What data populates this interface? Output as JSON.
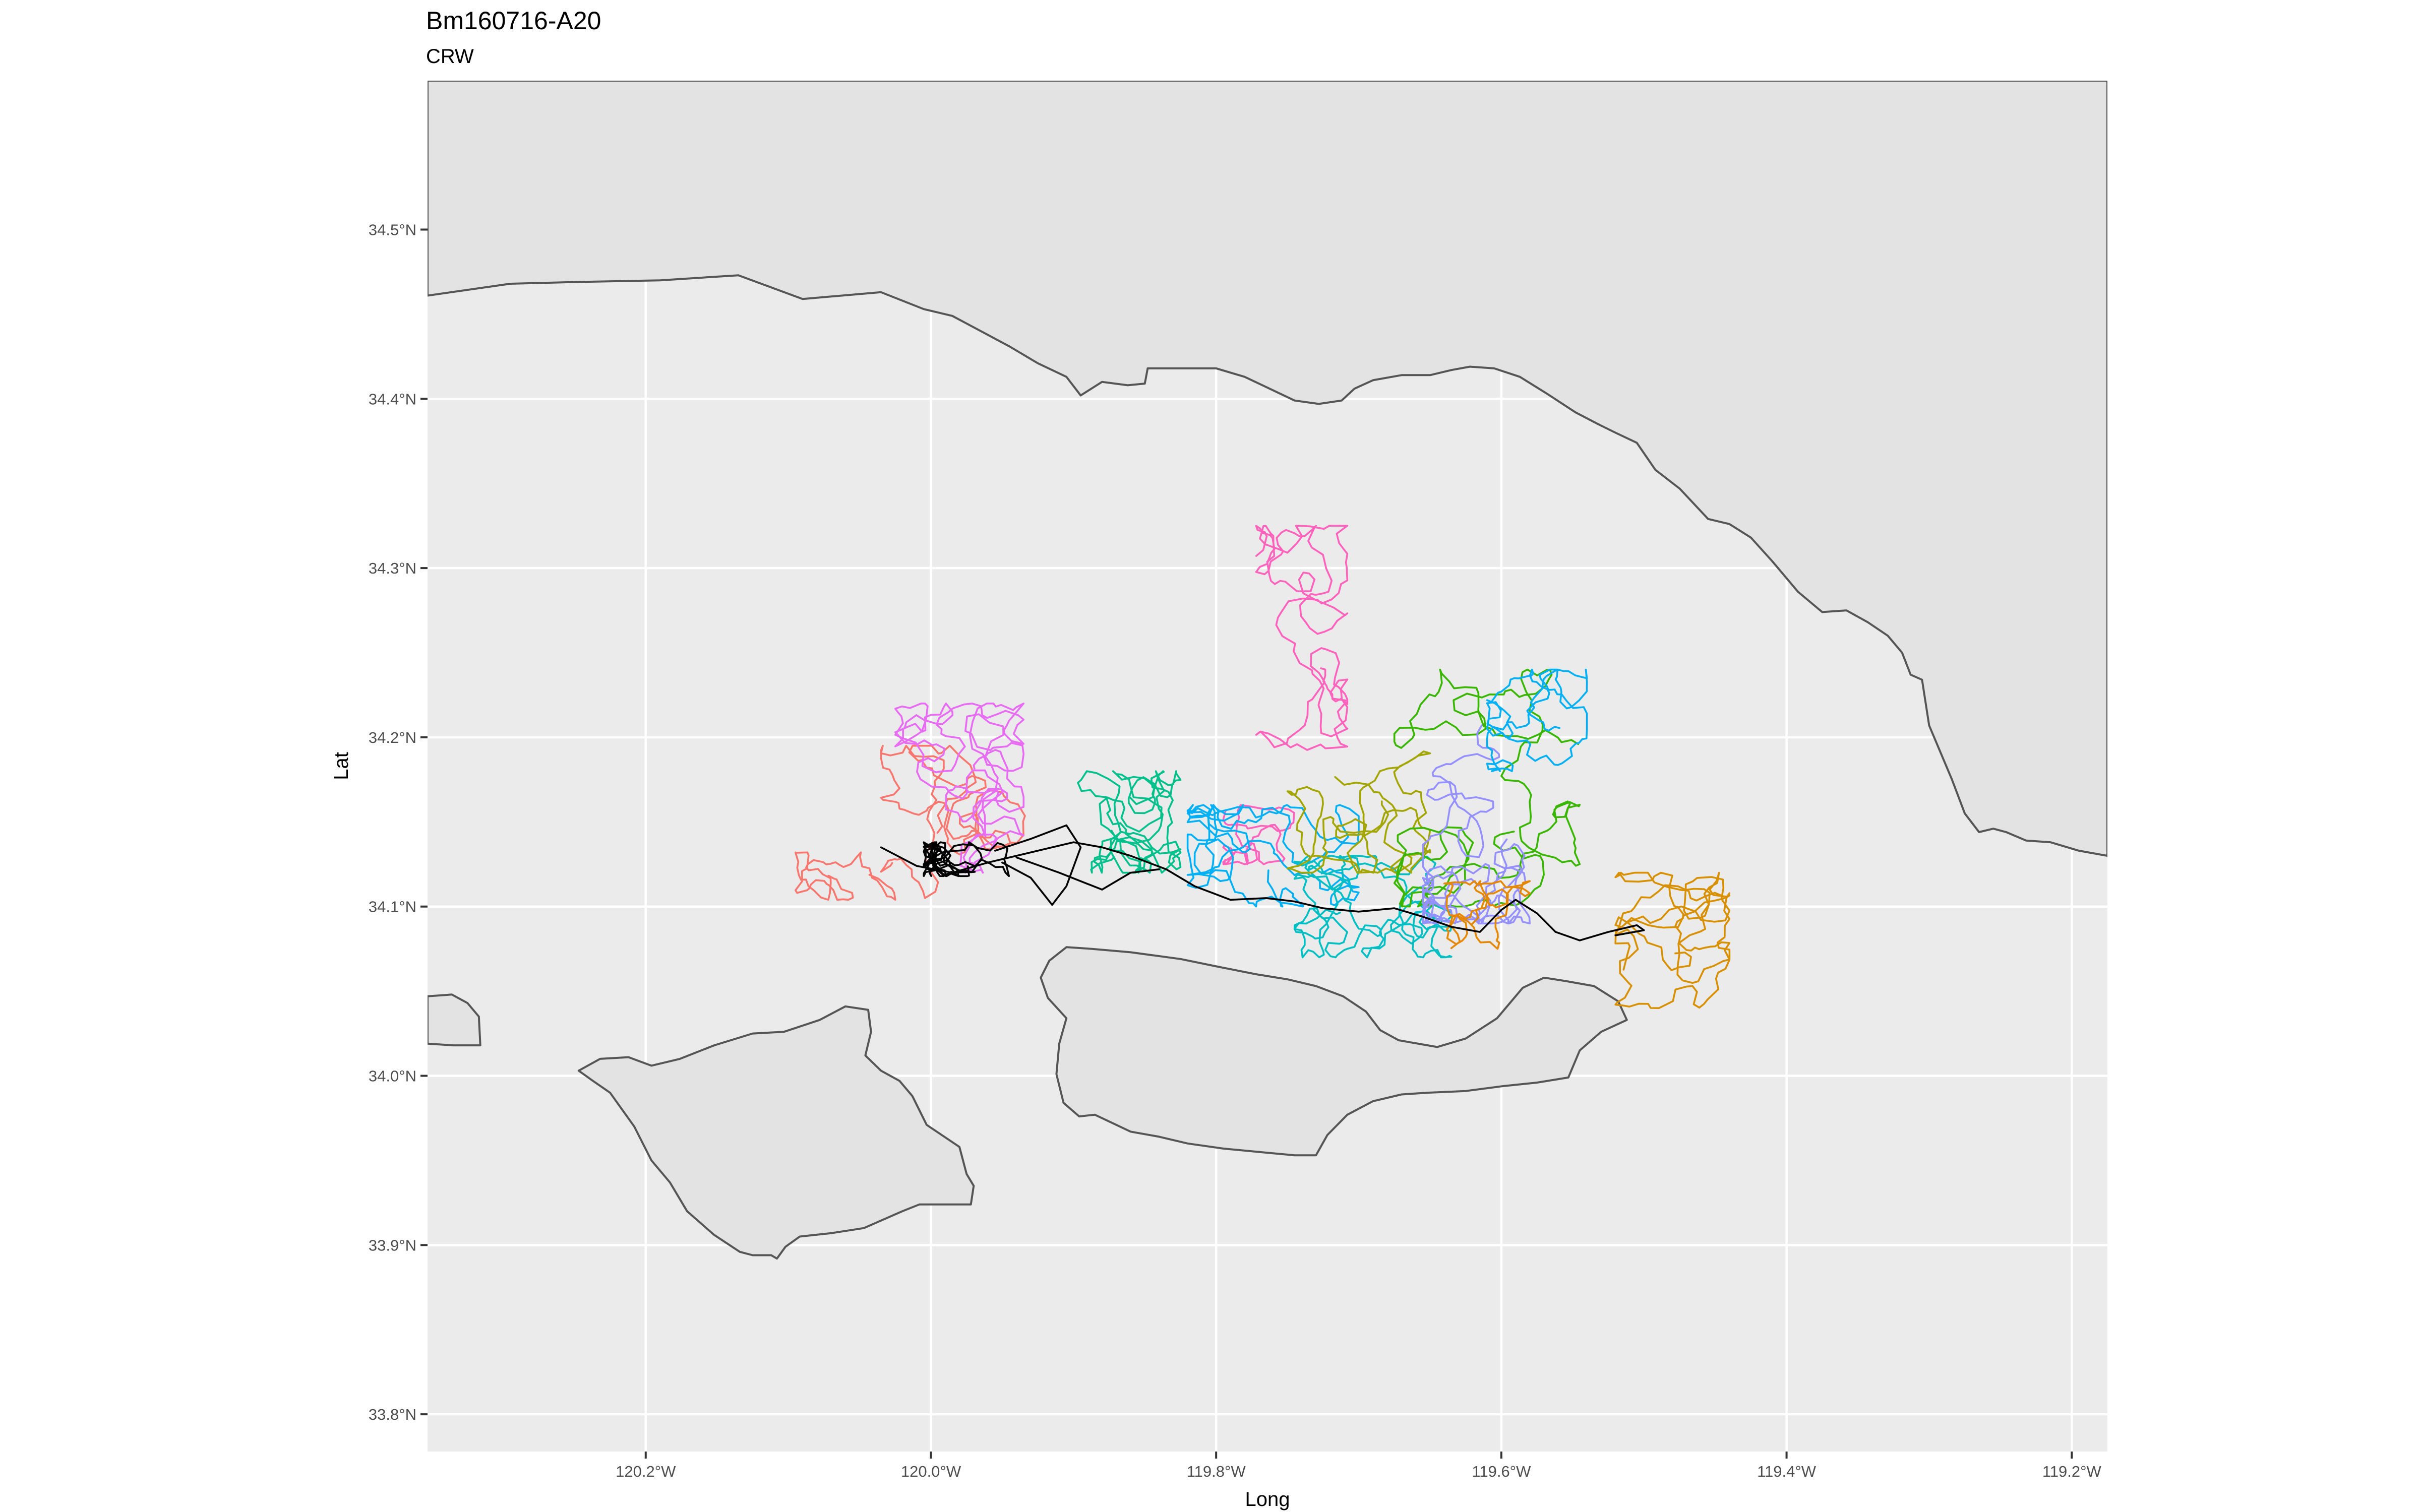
{
  "title": "Bm160716-A20",
  "subtitle": "CRW",
  "chart_data": {
    "type": "map",
    "title": "Bm160716-A20",
    "subtitle": "CRW",
    "xlabel": "Long",
    "ylabel": "Lat",
    "xlim": [
      -120.353,
      -119.175
    ],
    "ylim": [
      33.778,
      34.588
    ],
    "x_ticks": [
      {
        "value": -120.2,
        "label": "120.2°W"
      },
      {
        "value": -120.0,
        "label": "120.0°W"
      },
      {
        "value": -119.8,
        "label": "119.8°W"
      },
      {
        "value": -119.6,
        "label": "119.6°W"
      },
      {
        "value": -119.4,
        "label": "119.4°W"
      },
      {
        "value": -119.2,
        "label": "119.2°W"
      }
    ],
    "y_ticks": [
      {
        "value": 33.8,
        "label": "33.8°N"
      },
      {
        "value": 33.9,
        "label": "33.9°N"
      },
      {
        "value": 34.0,
        "label": "34.0°N"
      },
      {
        "value": 34.1,
        "label": "34.1°N"
      },
      {
        "value": 34.2,
        "label": "34.2°N"
      },
      {
        "value": 34.3,
        "label": "34.3°N"
      },
      {
        "value": 34.4,
        "label": "34.4°N"
      },
      {
        "value": 34.5,
        "label": "34.5°N"
      }
    ],
    "panel_background": "#ebebeb",
    "land_fill": "#e3e3e3",
    "land_stroke": "#555555",
    "grid": true,
    "legend": "none",
    "land": [
      {
        "name": "mainland-coast",
        "points": [
          [
            -120.353,
            34.461
          ],
          [
            -120.295,
            34.468
          ],
          [
            -120.25,
            34.469
          ],
          [
            -120.19,
            34.47
          ],
          [
            -120.135,
            34.473
          ],
          [
            -120.09,
            34.459
          ],
          [
            -120.035,
            34.463
          ],
          [
            -120.005,
            34.453
          ],
          [
            -119.985,
            34.449
          ],
          [
            -119.965,
            34.44
          ],
          [
            -119.945,
            34.431
          ],
          [
            -119.925,
            34.421
          ],
          [
            -119.905,
            34.413
          ],
          [
            -119.895,
            34.402
          ],
          [
            -119.88,
            34.41
          ],
          [
            -119.862,
            34.408
          ],
          [
            -119.85,
            34.409
          ],
          [
            -119.848,
            34.418
          ],
          [
            -119.825,
            34.418
          ],
          [
            -119.8,
            34.418
          ],
          [
            -119.78,
            34.413
          ],
          [
            -119.765,
            34.407
          ],
          [
            -119.745,
            34.399
          ],
          [
            -119.728,
            34.397
          ],
          [
            -119.712,
            34.399
          ],
          [
            -119.703,
            34.406
          ],
          [
            -119.69,
            34.411
          ],
          [
            -119.67,
            34.414
          ],
          [
            -119.65,
            34.414
          ],
          [
            -119.635,
            34.417
          ],
          [
            -119.622,
            34.419
          ],
          [
            -119.605,
            34.418
          ],
          [
            -119.587,
            34.413
          ],
          [
            -119.568,
            34.403
          ],
          [
            -119.548,
            34.392
          ],
          [
            -119.532,
            34.385
          ],
          [
            -119.52,
            34.38
          ],
          [
            -119.505,
            34.374
          ],
          [
            -119.492,
            34.358
          ],
          [
            -119.475,
            34.347
          ],
          [
            -119.455,
            34.329
          ],
          [
            -119.44,
            34.326
          ],
          [
            -119.425,
            34.318
          ],
          [
            -119.41,
            34.304
          ],
          [
            -119.392,
            34.286
          ],
          [
            -119.375,
            34.274
          ],
          [
            -119.358,
            34.275
          ],
          [
            -119.343,
            34.268
          ],
          [
            -119.329,
            34.26
          ],
          [
            -119.319,
            34.25
          ],
          [
            -119.313,
            34.237
          ],
          [
            -119.305,
            34.234
          ],
          [
            -119.3,
            34.207
          ],
          [
            -119.284,
            34.175
          ],
          [
            -119.275,
            34.155
          ],
          [
            -119.265,
            34.144
          ],
          [
            -119.255,
            34.146
          ],
          [
            -119.246,
            34.144
          ],
          [
            -119.232,
            34.139
          ],
          [
            -119.215,
            34.138
          ],
          [
            -119.195,
            34.133
          ],
          [
            -119.175,
            34.13
          ],
          [
            -119.175,
            34.588
          ],
          [
            -120.353,
            34.588
          ]
        ]
      },
      {
        "name": "san-miguel-island",
        "points": [
          [
            -120.353,
            34.047
          ],
          [
            -120.336,
            34.048
          ],
          [
            -120.325,
            34.043
          ],
          [
            -120.317,
            34.035
          ],
          [
            -120.316,
            34.018
          ],
          [
            -120.335,
            34.018
          ],
          [
            -120.353,
            34.019
          ]
        ]
      },
      {
        "name": "santa-rosa-island",
        "points": [
          [
            -120.247,
            34.003
          ],
          [
            -120.232,
            34.01
          ],
          [
            -120.212,
            34.011
          ],
          [
            -120.196,
            34.006
          ],
          [
            -120.176,
            34.01
          ],
          [
            -120.152,
            34.018
          ],
          [
            -120.125,
            34.025
          ],
          [
            -120.103,
            34.026
          ],
          [
            -120.078,
            34.033
          ],
          [
            -120.06,
            34.041
          ],
          [
            -120.044,
            34.039
          ],
          [
            -120.042,
            34.026
          ],
          [
            -120.046,
            34.012
          ],
          [
            -120.035,
            34.003
          ],
          [
            -120.022,
            33.997
          ],
          [
            -120.013,
            33.988
          ],
          [
            -120.003,
            33.971
          ],
          [
            -119.98,
            33.958
          ],
          [
            -119.975,
            33.942
          ],
          [
            -119.97,
            33.935
          ],
          [
            -119.972,
            33.924
          ],
          [
            -120.008,
            33.924
          ],
          [
            -120.02,
            33.92
          ],
          [
            -120.047,
            33.91
          ],
          [
            -120.07,
            33.907
          ],
          [
            -120.092,
            33.905
          ],
          [
            -120.102,
            33.899
          ],
          [
            -120.108,
            33.892
          ],
          [
            -120.112,
            33.894
          ],
          [
            -120.125,
            33.894
          ],
          [
            -120.134,
            33.896
          ],
          [
            -120.152,
            33.906
          ],
          [
            -120.171,
            33.92
          ],
          [
            -120.183,
            33.937
          ],
          [
            -120.196,
            33.95
          ],
          [
            -120.208,
            33.97
          ],
          [
            -120.225,
            33.99
          ],
          [
            -120.237,
            33.997
          ]
        ]
      },
      {
        "name": "santa-cruz-island",
        "points": [
          [
            -119.917,
            34.068
          ],
          [
            -119.905,
            34.076
          ],
          [
            -119.887,
            34.075
          ],
          [
            -119.86,
            34.073
          ],
          [
            -119.825,
            34.069
          ],
          [
            -119.796,
            34.064
          ],
          [
            -119.772,
            34.06
          ],
          [
            -119.75,
            34.057
          ],
          [
            -119.73,
            34.053
          ],
          [
            -119.711,
            34.047
          ],
          [
            -119.695,
            34.038
          ],
          [
            -119.685,
            34.027
          ],
          [
            -119.672,
            34.021
          ],
          [
            -119.645,
            34.017
          ],
          [
            -119.625,
            34.022
          ],
          [
            -119.603,
            34.034
          ],
          [
            -119.585,
            34.052
          ],
          [
            -119.57,
            34.058
          ],
          [
            -119.555,
            34.056
          ],
          [
            -119.535,
            34.053
          ],
          [
            -119.518,
            34.044
          ],
          [
            -119.512,
            34.033
          ],
          [
            -119.53,
            34.026
          ],
          [
            -119.545,
            34.015
          ],
          [
            -119.553,
            33.999
          ],
          [
            -119.575,
            33.996
          ],
          [
            -119.598,
            33.994
          ],
          [
            -119.625,
            33.991
          ],
          [
            -119.652,
            33.99
          ],
          [
            -119.67,
            33.989
          ],
          [
            -119.69,
            33.985
          ],
          [
            -119.708,
            33.977
          ],
          [
            -119.722,
            33.965
          ],
          [
            -119.73,
            33.953
          ],
          [
            -119.745,
            33.953
          ],
          [
            -119.77,
            33.955
          ],
          [
            -119.795,
            33.957
          ],
          [
            -119.82,
            33.96
          ],
          [
            -119.84,
            33.964
          ],
          [
            -119.86,
            33.967
          ],
          [
            -119.875,
            33.973
          ],
          [
            -119.885,
            33.977
          ],
          [
            -119.896,
            33.976
          ],
          [
            -119.907,
            33.984
          ],
          [
            -119.912,
            34.001
          ],
          [
            -119.91,
            34.019
          ],
          [
            -119.905,
            34.034
          ],
          [
            -119.918,
            34.046
          ],
          [
            -119.923,
            34.058
          ]
        ]
      }
    ],
    "track_seed": 160716,
    "series": [
      {
        "color": "#f8766d",
        "n": 160,
        "center": [
          -119.98,
          34.15
        ],
        "spread": [
          0.055,
          0.045
        ],
        "step": 0.0055
      },
      {
        "color": "#f8766d",
        "n": 70,
        "center": [
          -120.06,
          34.118
        ],
        "spread": [
          0.035,
          0.014
        ],
        "step": 0.0045
      },
      {
        "color": "#e76bf3",
        "n": 230,
        "center": [
          -119.98,
          34.17
        ],
        "spread": [
          0.045,
          0.05
        ],
        "step": 0.006
      },
      {
        "color": "#ff62bc",
        "n": 180,
        "center": [
          -119.74,
          34.25
        ],
        "spread": [
          0.032,
          0.075
        ],
        "step": 0.006
      },
      {
        "color": "#ff62bc",
        "n": 80,
        "center": [
          -119.77,
          34.145
        ],
        "spread": [
          0.025,
          0.02
        ],
        "step": 0.0045
      },
      {
        "color": "#00c08b",
        "n": 190,
        "center": [
          -119.87,
          34.15
        ],
        "spread": [
          0.045,
          0.03
        ],
        "step": 0.0055
      },
      {
        "color": "#00b0f6",
        "n": 230,
        "center": [
          -119.76,
          34.13
        ],
        "spread": [
          0.06,
          0.03
        ],
        "step": 0.005
      },
      {
        "color": "#00bfc4",
        "n": 250,
        "center": [
          -119.69,
          34.1
        ],
        "spread": [
          0.055,
          0.03
        ],
        "step": 0.005
      },
      {
        "color": "#a3a500",
        "n": 170,
        "center": [
          -119.7,
          34.16
        ],
        "spread": [
          0.05,
          0.04
        ],
        "step": 0.0055
      },
      {
        "color": "#39b600",
        "n": 230,
        "center": [
          -119.61,
          34.17
        ],
        "spread": [
          0.065,
          0.07
        ],
        "step": 0.006
      },
      {
        "color": "#9590ff",
        "n": 250,
        "center": [
          -119.6,
          34.15
        ],
        "spread": [
          0.055,
          0.06
        ],
        "step": 0.0055
      },
      {
        "color": "#00b0f6",
        "n": 130,
        "center": [
          -119.575,
          34.21
        ],
        "spread": [
          0.035,
          0.03
        ],
        "step": 0.005
      },
      {
        "color": "#d89000",
        "n": 180,
        "center": [
          -119.48,
          34.08
        ],
        "spread": [
          0.04,
          0.04
        ],
        "step": 0.006
      },
      {
        "color": "#e58700",
        "n": 90,
        "center": [
          -119.61,
          34.095
        ],
        "spread": [
          0.03,
          0.02
        ],
        "step": 0.0045
      }
    ],
    "black_track": {
      "color": "#000000",
      "loops_center": [
        -119.975,
        34.128
      ],
      "loops_spread": [
        0.03,
        0.01
      ],
      "loops_n": 150,
      "path": [
        [
          -120.035,
          34.135
        ],
        [
          -120.01,
          34.124
        ],
        [
          -119.985,
          34.12
        ],
        [
          -119.96,
          34.126
        ],
        [
          -119.94,
          34.13
        ],
        [
          -119.92,
          34.134
        ],
        [
          -119.9,
          34.138
        ],
        [
          -119.88,
          34.135
        ],
        [
          -119.86,
          34.13
        ],
        [
          -119.835,
          34.122
        ],
        [
          -119.815,
          34.112
        ],
        [
          -119.79,
          34.104
        ],
        [
          -119.765,
          34.105
        ],
        [
          -119.745,
          34.103
        ],
        [
          -119.725,
          34.099
        ],
        [
          -119.7,
          34.097
        ],
        [
          -119.675,
          34.099
        ],
        [
          -119.655,
          34.094
        ],
        [
          -119.635,
          34.088
        ],
        [
          -119.615,
          34.085
        ],
        [
          -119.6,
          34.098
        ],
        [
          -119.59,
          34.104
        ],
        [
          -119.575,
          34.096
        ],
        [
          -119.562,
          34.085
        ],
        [
          -119.545,
          34.08
        ],
        [
          -119.525,
          34.085
        ],
        [
          -119.505,
          34.089
        ],
        [
          -119.5,
          34.086
        ],
        [
          -119.52,
          34.083
        ]
      ],
      "detours": [
        [
          [
            -119.955,
            34.133
          ],
          [
            -119.93,
            34.14
          ],
          [
            -119.905,
            34.148
          ],
          [
            -119.895,
            34.135
          ],
          [
            -119.905,
            34.112
          ],
          [
            -119.915,
            34.101
          ],
          [
            -119.93,
            34.117
          ],
          [
            -119.95,
            34.126
          ]
        ],
        [
          [
            -119.94,
            34.129
          ],
          [
            -119.91,
            34.12
          ],
          [
            -119.88,
            34.11
          ],
          [
            -119.86,
            34.12
          ],
          [
            -119.84,
            34.122
          ]
        ]
      ]
    }
  }
}
